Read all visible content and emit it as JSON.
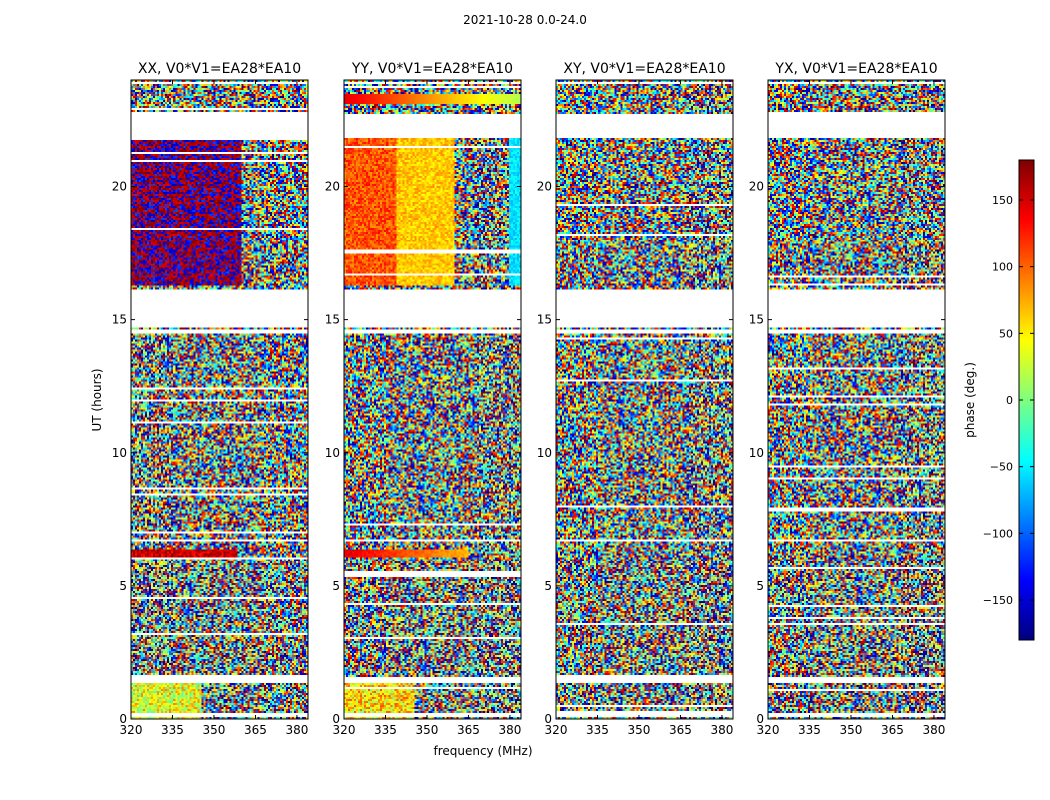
{
  "figure_title": "2021-10-28 0.0-24.0",
  "colorscale": [
    "#00007f",
    "#0000ff",
    "#007fff",
    "#00ffff",
    "#7fff7f",
    "#ffff00",
    "#ff7f00",
    "#ff0000",
    "#7f0000"
  ],
  "chart_data": {
    "type": "heatmap",
    "title": "2021-10-28 0.0-24.0",
    "xlabel": "frequency (MHz)",
    "ylabel": "UT (hours)",
    "xlim": [
      320,
      384
    ],
    "ylim": [
      0,
      24
    ],
    "xticks": [
      320,
      335,
      350,
      365,
      380
    ],
    "yticks": [
      0,
      5,
      10,
      15,
      20
    ],
    "panels": [
      {
        "title": "XX, V0*V1=EA28*EA10",
        "pattern": "xx"
      },
      {
        "title": "YY, V0*V1=EA28*EA10",
        "pattern": "yy"
      },
      {
        "title": "XY, V0*V1=EA28*EA10",
        "pattern": "noise"
      },
      {
        "title": "YX, V0*V1=EA28*EA10",
        "pattern": "noise"
      }
    ],
    "gaps_hours": [
      [
        0.05,
        0.2
      ],
      [
        1.35,
        1.55
      ],
      [
        6.7,
        6.75
      ],
      [
        14.5,
        14.6
      ],
      [
        14.7,
        16.1
      ],
      [
        21.8,
        22.7
      ],
      [
        23.6,
        23.65
      ],
      [
        23.85,
        23.9
      ]
    ],
    "colorbar": {
      "label": "phase (deg.)",
      "range": [
        -180,
        180
      ],
      "ticks": [
        -150,
        -100,
        -50,
        0,
        50,
        100,
        150
      ],
      "tick_labels": [
        "−150",
        "−100",
        "−50",
        "0",
        "50",
        "100",
        "150"
      ]
    }
  }
}
